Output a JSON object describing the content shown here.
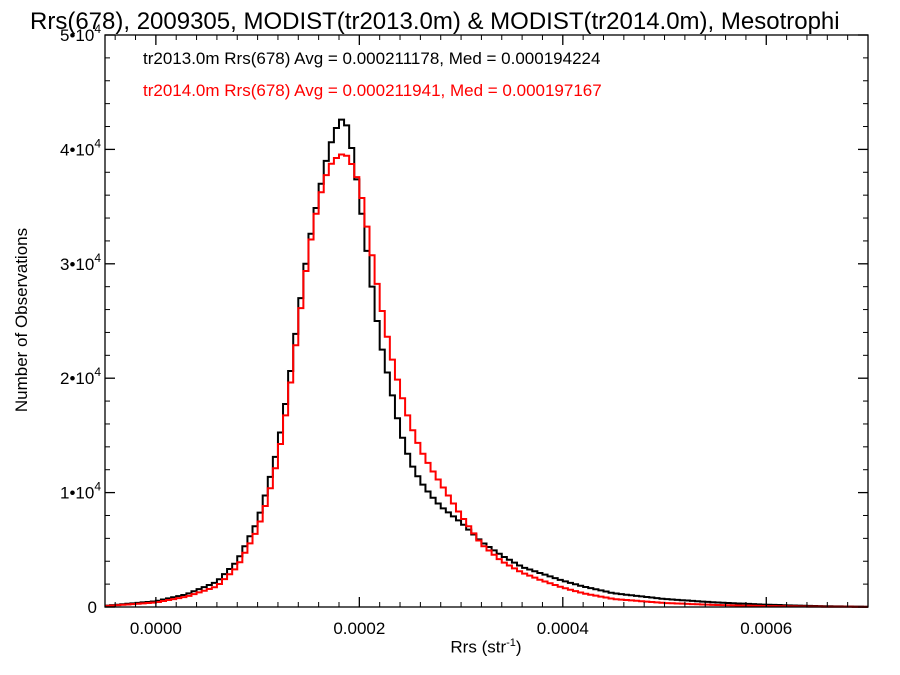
{
  "chart_data": {
    "type": "line",
    "title": "Rrs(678), 2009305, MODIST(tr2013.0m) & MODIST(tr2014.0m), Mesotrophi",
    "xlabel_base": "Rrs (str",
    "xlabel_exp": "-1",
    "xlabel_tail": ")",
    "ylabel": "Number of Observations",
    "xlim": [
      -5e-05,
      0.0007
    ],
    "ylim": [
      0,
      50000
    ],
    "x_ticks": [
      {
        "value": 0.0,
        "label": "0.0000"
      },
      {
        "value": 0.0002,
        "label": "0.0002"
      },
      {
        "value": 0.0004,
        "label": "0.0004"
      },
      {
        "value": 0.0006,
        "label": "0.0006"
      }
    ],
    "y_ticks": [
      {
        "value": 0,
        "mant": "0",
        "exp": ""
      },
      {
        "value": 10000,
        "mant": "1•10",
        "exp": "4"
      },
      {
        "value": 20000,
        "mant": "2•10",
        "exp": "4"
      },
      {
        "value": 30000,
        "mant": "3•10",
        "exp": "4"
      },
      {
        "value": 40000,
        "mant": "4•10",
        "exp": "4"
      },
      {
        "value": 50000,
        "mant": "5•10",
        "exp": "4"
      }
    ],
    "series": [
      {
        "legend": "tr2013.0m Rrs(678) Avg = 0.000211178, Med = 0.000194224",
        "color": "#000000",
        "x": [
          -5e-05,
          0.0,
          3e-05,
          6e-05,
          8e-05,
          0.0001,
          0.00011,
          0.00012,
          0.00013,
          0.00014,
          0.00015,
          0.00016,
          0.00017,
          0.00018,
          0.000185,
          0.00019,
          0.0002,
          0.00021,
          0.00022,
          0.00023,
          0.00024,
          0.00025,
          0.00026,
          0.00027,
          0.00028,
          0.0003,
          0.00032,
          0.00034,
          0.00036,
          0.00038,
          0.0004,
          0.00042,
          0.00045,
          0.0005,
          0.00055,
          0.0006,
          0.00065,
          0.0007
        ],
        "y": [
          100,
          500,
          1100,
          2200,
          4000,
          7500,
          10500,
          14000,
          19000,
          25500,
          31500,
          36000,
          40000,
          42500,
          42700,
          41500,
          36000,
          29500,
          23500,
          19500,
          15500,
          12700,
          11000,
          9800,
          8800,
          7400,
          5700,
          4500,
          3500,
          2900,
          2300,
          1800,
          1200,
          700,
          400,
          200,
          80,
          20
        ]
      },
      {
        "legend": "tr2014.0m Rrs(678) Avg = 0.000211941, Med = 0.000197167",
        "color": "#ff0000",
        "x": [
          -5e-05,
          0.0,
          3e-05,
          6e-05,
          8e-05,
          0.0001,
          0.00011,
          0.00012,
          0.00013,
          0.00014,
          0.00015,
          0.00016,
          0.00017,
          0.00018,
          0.000185,
          0.00019,
          0.0002,
          0.00021,
          0.00022,
          0.00023,
          0.00024,
          0.00025,
          0.00026,
          0.00027,
          0.00028,
          0.0003,
          0.00032,
          0.00034,
          0.00036,
          0.00038,
          0.0004,
          0.00042,
          0.00045,
          0.0005,
          0.00055,
          0.0006,
          0.00065,
          0.0007
        ],
        "y": [
          80,
          400,
          900,
          1800,
          3500,
          6800,
          9500,
          13000,
          18000,
          24500,
          31000,
          35500,
          38500,
          39500,
          39600,
          39300,
          37000,
          32000,
          27000,
          22500,
          19000,
          16000,
          13800,
          12200,
          10800,
          8000,
          5500,
          4000,
          3000,
          2300,
          1700,
          1200,
          700,
          350,
          180,
          80,
          30,
          10
        ]
      }
    ],
    "grid": false
  }
}
